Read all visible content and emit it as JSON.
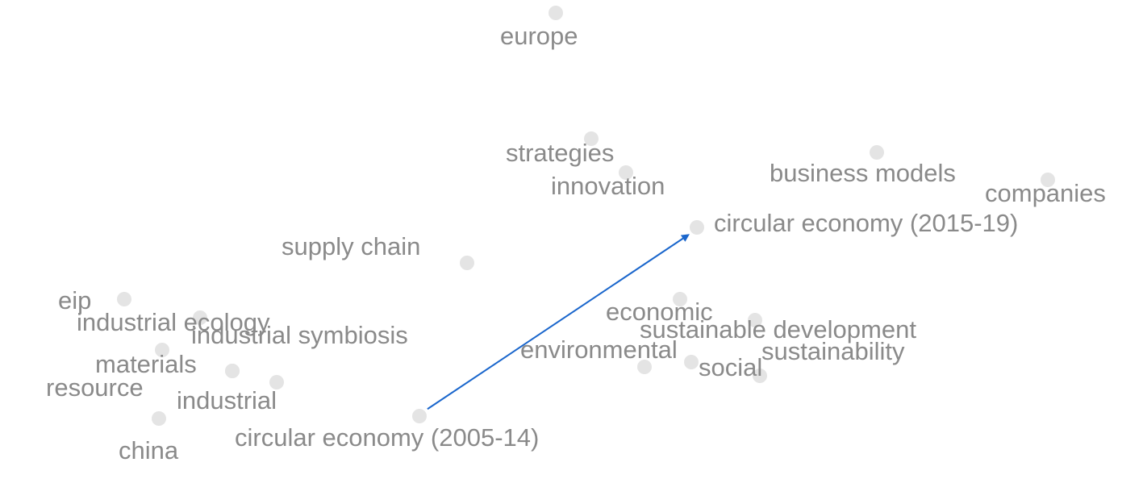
{
  "colors": {
    "background": "#ffffff",
    "label": "#8a8a8a",
    "dot": "#e4e4e4",
    "arrow": "#1a66cc"
  },
  "terms": [
    {
      "id": "europe",
      "label": "europe"
    },
    {
      "id": "strategies",
      "label": "strategies"
    },
    {
      "id": "innovation",
      "label": "innovation"
    },
    {
      "id": "business-models",
      "label": "business models"
    },
    {
      "id": "companies",
      "label": "companies"
    },
    {
      "id": "circular-economy-2015-19",
      "label": "circular economy (2015-19)"
    },
    {
      "id": "supply-chain",
      "label": "supply chain"
    },
    {
      "id": "eip",
      "label": "eip"
    },
    {
      "id": "industrial-ecology",
      "label": "industrial ecology"
    },
    {
      "id": "industrial-symbiosis",
      "label": "industrial symbiosis"
    },
    {
      "id": "materials",
      "label": "materials"
    },
    {
      "id": "resource",
      "label": "resource"
    },
    {
      "id": "industrial",
      "label": "industrial"
    },
    {
      "id": "china",
      "label": "china"
    },
    {
      "id": "circular-economy-2005-14",
      "label": "circular economy (2005-14)"
    },
    {
      "id": "economic",
      "label": "economic"
    },
    {
      "id": "sustainable-development",
      "label": "sustainable development"
    },
    {
      "id": "environmental",
      "label": "environmental"
    },
    {
      "id": "sustainability",
      "label": "sustainability"
    },
    {
      "id": "social",
      "label": "social"
    }
  ],
  "arrow": {
    "from": "circular-economy-2005-14",
    "to": "circular-economy-2015-19"
  }
}
